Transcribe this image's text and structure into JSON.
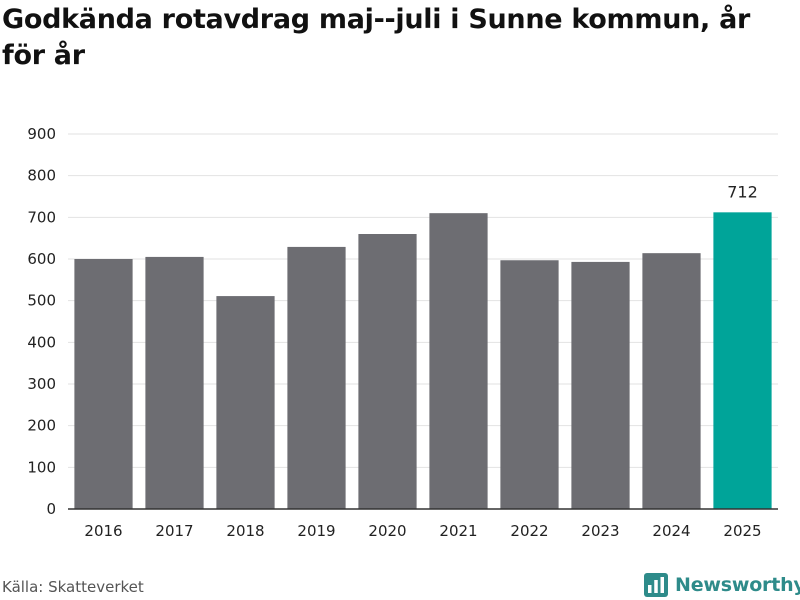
{
  "title": "Godkända rotavdrag maj--juli i Sunne kommun, år för år",
  "source": "Källa: Skatteverket",
  "brand": {
    "name": "Newsworthy",
    "icon": "bar-chart-logo-icon"
  },
  "colors": {
    "bar": "#6d6d72",
    "highlight": "#00a499",
    "grid": "#e2e2e2",
    "axis": "#333333",
    "brand": "#2e8b8a"
  },
  "chart_data": {
    "type": "bar",
    "categories": [
      "2016",
      "2017",
      "2018",
      "2019",
      "2020",
      "2021",
      "2022",
      "2023",
      "2024",
      "2025"
    ],
    "values": [
      600,
      605,
      511,
      629,
      660,
      710,
      597,
      593,
      614,
      712
    ],
    "highlight_index": 9,
    "data_labels": [
      {
        "index": 9,
        "text": "712"
      }
    ],
    "ylim": [
      0,
      900
    ],
    "yticks": [
      0,
      100,
      200,
      300,
      400,
      500,
      600,
      700,
      800,
      900
    ],
    "grid": true,
    "xlabel": "",
    "ylabel": ""
  }
}
